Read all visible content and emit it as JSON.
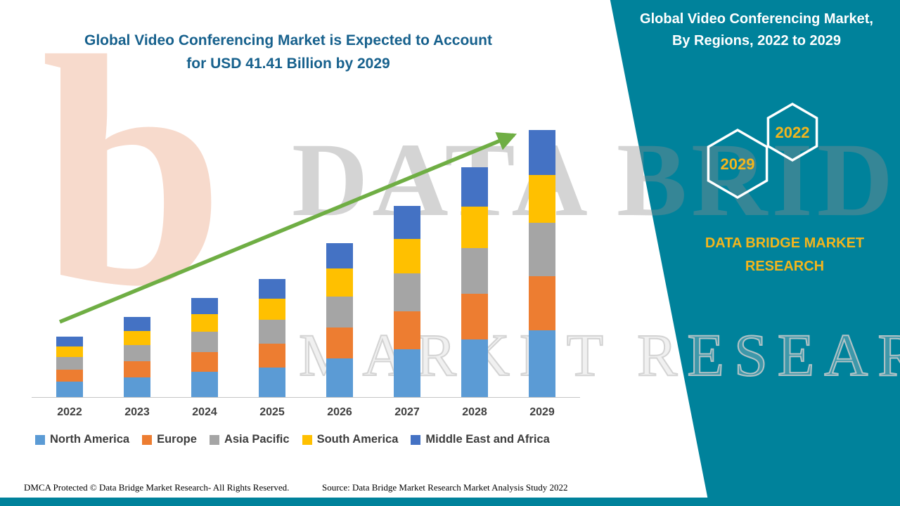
{
  "header": {
    "title_line1": "Global Video Conferencing Market is Expected to Account",
    "title_line2": "for USD 41.41 Billion by 2029",
    "panel_title_line1": "Global Video Conferencing Market,",
    "panel_title_line2": "By Regions, 2022 to 2029"
  },
  "side_panel": {
    "panel_color": "#00829b",
    "accent_text_color": "#f2b51d",
    "hexagons": [
      {
        "label": "2029"
      },
      {
        "label": "2022"
      }
    ],
    "brand_line1": "DATA BRIDGE MARKET",
    "brand_line2": "RESEARCH"
  },
  "watermark": {
    "logo_glyph": "b",
    "line1": "DATA BRIDGE",
    "line2": "MARKET RESEARCH"
  },
  "footer": {
    "dmca": "DMCA Protected © Data Bridge Market Research- All Rights Reserved.",
    "source": "Source: Data Bridge Market Research Market Analysis Study 2022"
  },
  "chart_data": {
    "type": "bar",
    "stacked": true,
    "title": "Global Video Conferencing Market is Expected to Account for USD 41.41 Billion by 2029",
    "unit": "USD Billion",
    "categories": [
      "2022",
      "2023",
      "2024",
      "2025",
      "2026",
      "2027",
      "2028",
      "2029"
    ],
    "series": [
      {
        "name": "North America",
        "color": "#5b9bd5",
        "values": [
          2.4,
          3.1,
          3.9,
          4.6,
          6.0,
          7.4,
          8.9,
          10.41
        ]
      },
      {
        "name": "Europe",
        "color": "#ed7d31",
        "values": [
          1.9,
          2.5,
          3.1,
          3.7,
          4.8,
          5.9,
          7.1,
          8.3
        ]
      },
      {
        "name": "Asia Pacific",
        "color": "#a5a5a5",
        "values": [
          1.9,
          2.5,
          3.1,
          3.7,
          4.8,
          5.9,
          7.1,
          8.3
        ]
      },
      {
        "name": "South America",
        "color": "#ffc000",
        "values": [
          1.7,
          2.2,
          2.8,
          3.3,
          4.3,
          5.3,
          6.4,
          7.4
        ]
      },
      {
        "name": "Middle East and Africa",
        "color": "#4472c4",
        "values": [
          1.5,
          2.1,
          2.5,
          3.0,
          4.0,
          5.2,
          6.1,
          7.0
        ]
      }
    ],
    "totals_estimated": [
      9.4,
      12.4,
      15.4,
      18.3,
      23.9,
      29.7,
      35.6,
      41.41
    ],
    "ylim": [
      0,
      42
    ],
    "grid": false,
    "legend_position": "bottom",
    "annotation": "upward trend arrow across bars",
    "trend_color": "#6fae44"
  }
}
